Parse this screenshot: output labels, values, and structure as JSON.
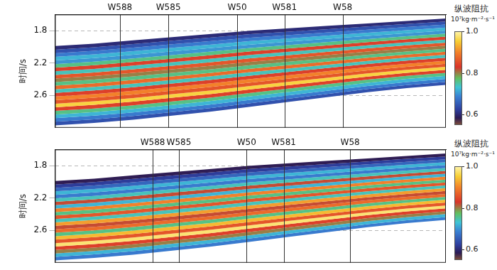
{
  "chart_data": [
    {
      "type": "section",
      "y_label": "时间/s",
      "xlim": [
        0,
        100
      ],
      "xticks": [
        {
          "value": 16.6,
          "label": "W588"
        },
        {
          "value": 29,
          "label": "W585"
        },
        {
          "value": 46.6,
          "label": "W50"
        },
        {
          "value": 58.7,
          "label": "W581"
        },
        {
          "value": 73.6,
          "label": "W58"
        }
      ],
      "ylim": [
        1.6,
        3.0
      ],
      "yticks": [
        1.8,
        2.2,
        2.6
      ],
      "grid": true,
      "x": [
        0,
        10,
        20,
        30,
        40,
        50,
        60,
        70,
        80,
        90,
        100
      ],
      "top": [
        1.99,
        1.96,
        1.92,
        1.88,
        1.84,
        1.8,
        1.77,
        1.74,
        1.71,
        1.68,
        1.65
      ],
      "bottom": [
        2.97,
        2.94,
        2.9,
        2.85,
        2.8,
        2.74,
        2.68,
        2.62,
        2.56,
        2.51,
        2.47
      ],
      "impedance_layers": [
        0.6,
        0.64,
        0.68,
        0.72,
        0.7,
        0.76,
        0.84,
        0.74,
        0.86,
        0.8,
        0.76,
        0.88,
        0.74,
        0.84,
        0.9,
        0.86,
        0.96,
        0.84,
        0.76,
        0.72,
        0.68,
        0.64
      ],
      "colorbar": {
        "title": "纵波阻抗",
        "unit": "10⁷kg·m⁻²·s⁻¹",
        "range": [
          0.55,
          1.0
        ],
        "ticks": [
          {
            "value": 1,
            "label": "1.0"
          },
          0.8,
          0.6
        ]
      }
    },
    {
      "type": "section",
      "y_label": "时间/s",
      "xlim": [
        0,
        100
      ],
      "xticks": [
        {
          "value": 25,
          "label": "W588"
        },
        {
          "value": 31.7,
          "label": "W585"
        },
        {
          "value": 49,
          "label": "W50"
        },
        {
          "value": 58.5,
          "label": "W581"
        },
        {
          "value": 75.5,
          "label": "W58"
        }
      ],
      "ylim": [
        1.6,
        3.0
      ],
      "yticks": [
        1.8,
        2.2,
        2.6
      ],
      "grid": true,
      "x": [
        0,
        10,
        20,
        30,
        40,
        50,
        60,
        70,
        80,
        90,
        100
      ],
      "top": [
        1.99,
        1.96,
        1.92,
        1.88,
        1.84,
        1.8,
        1.77,
        1.74,
        1.71,
        1.68,
        1.65
      ],
      "bottom": [
        2.97,
        2.94,
        2.9,
        2.85,
        2.8,
        2.74,
        2.68,
        2.62,
        2.56,
        2.51,
        2.47
      ],
      "impedance_layers": [
        0.58,
        0.62,
        0.66,
        0.72,
        0.68,
        0.74,
        0.82,
        0.72,
        0.9,
        0.76,
        0.86,
        0.74,
        0.92,
        0.82,
        0.88,
        0.76,
        0.94,
        0.86,
        0.98,
        0.84,
        0.8,
        0.72,
        0.68
      ],
      "colorbar": {
        "title": "纵波阻抗",
        "unit": "10⁷kg·m⁻²·s⁻¹",
        "range": [
          0.55,
          1.0
        ],
        "ticks": [
          {
            "value": 1,
            "label": "1.0"
          },
          0.8,
          0.6
        ]
      }
    }
  ]
}
